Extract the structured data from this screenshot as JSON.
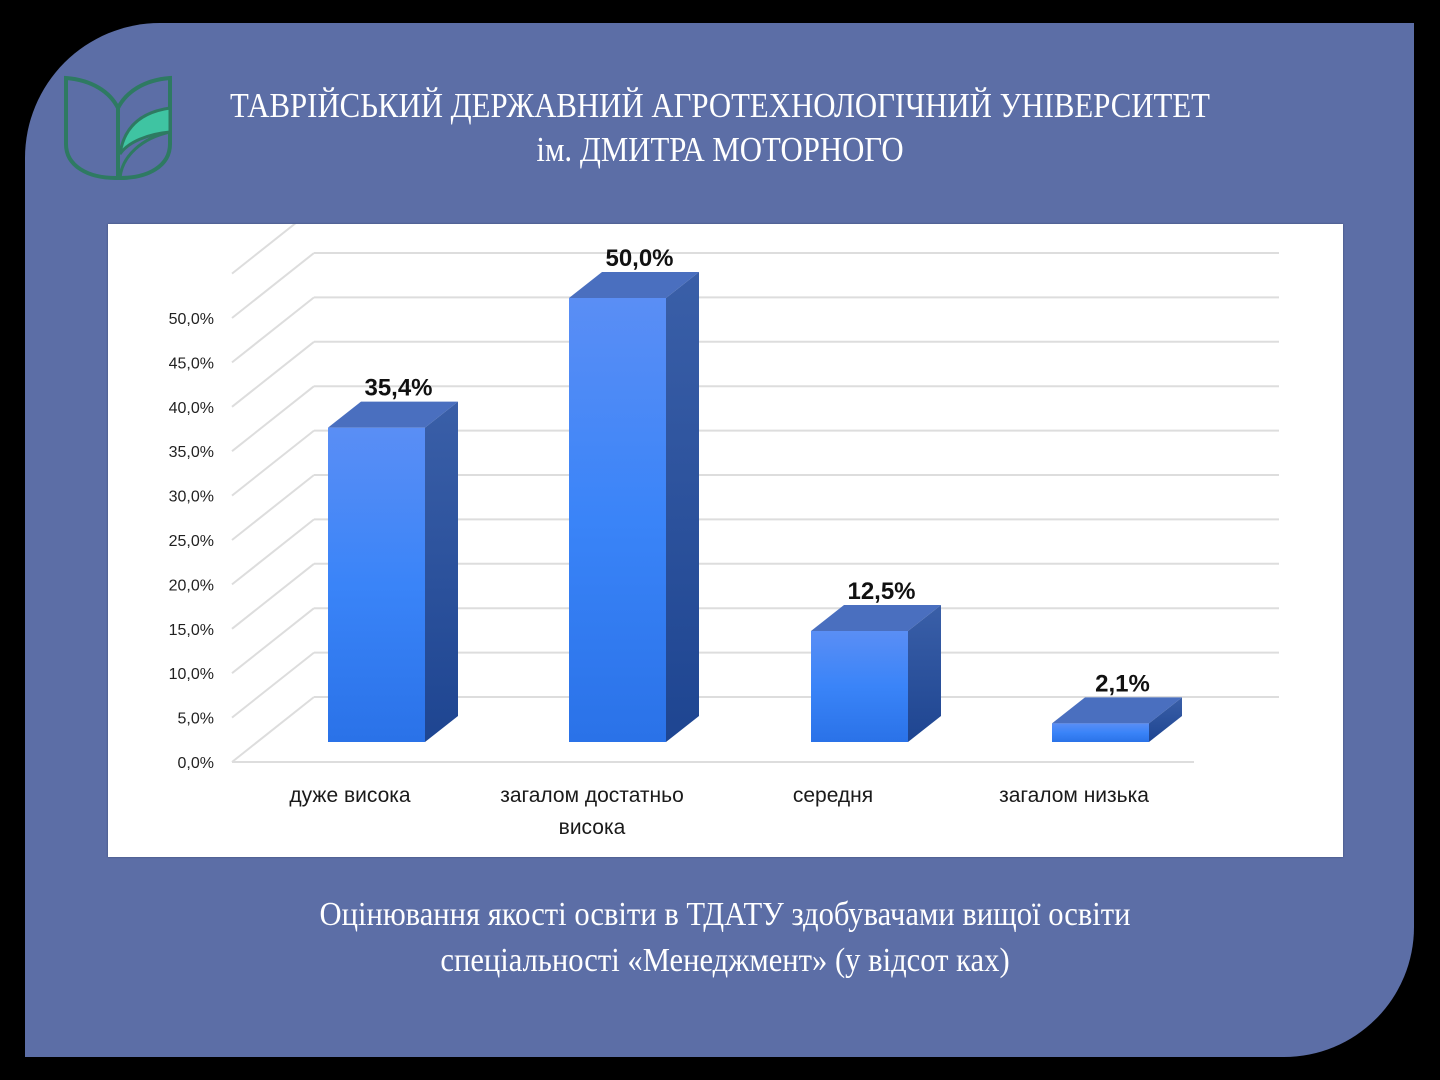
{
  "header": {
    "title_line1": "ТАВРІЙСЬКИЙ ДЕРЖАВНИЙ АГРОТЕХНОЛОГІЧНИЙ УНІВЕРСИТЕТ",
    "title_line2": "ім. ДМИТРА МОТОРНОГО",
    "logo_icon": "leaf-shield-logo-icon"
  },
  "caption": {
    "line1": "Оцінювання якості освіти в ТДАТУ здобувачами вищої освіти",
    "line2": "спеціальності «Менеджмент» (у відсот ках)"
  },
  "colors": {
    "slide_bg": "#5C6EA6",
    "page_bg": "#000000",
    "bar_front_top": "#5A8EF5",
    "bar_front_bottom": "#2A72E8",
    "bar_top_face": "#4A6FBF",
    "bar_side_face": "#2A4F9E",
    "gridline": "#DDDDDD",
    "logo_stroke": "#2E7A62",
    "logo_fill": "#3FC4A2"
  },
  "chart_data": {
    "type": "bar",
    "style": "3d-column",
    "title": "",
    "xlabel": "",
    "ylabel": "",
    "categories": [
      "дуже висока",
      "загалом достатньо висока",
      "середня",
      "загалом низька"
    ],
    "category_lines": [
      [
        "дуже висока"
      ],
      [
        "загалом достатньо",
        "висока"
      ],
      [
        "середня"
      ],
      [
        "загалом низька"
      ]
    ],
    "values": [
      35.4,
      50.0,
      12.5,
      2.1
    ],
    "data_labels": [
      "35,4%",
      "50,0%",
      "12,5%",
      "2,1%"
    ],
    "y_ticks": [
      "0,0%",
      "5,0%",
      "10,0%",
      "15,0%",
      "20,0%",
      "25,0%",
      "30,0%",
      "35,0%",
      "40,0%",
      "45,0%",
      "50,0%"
    ],
    "ylim": [
      0,
      55
    ],
    "grid": true,
    "legend": "none"
  }
}
